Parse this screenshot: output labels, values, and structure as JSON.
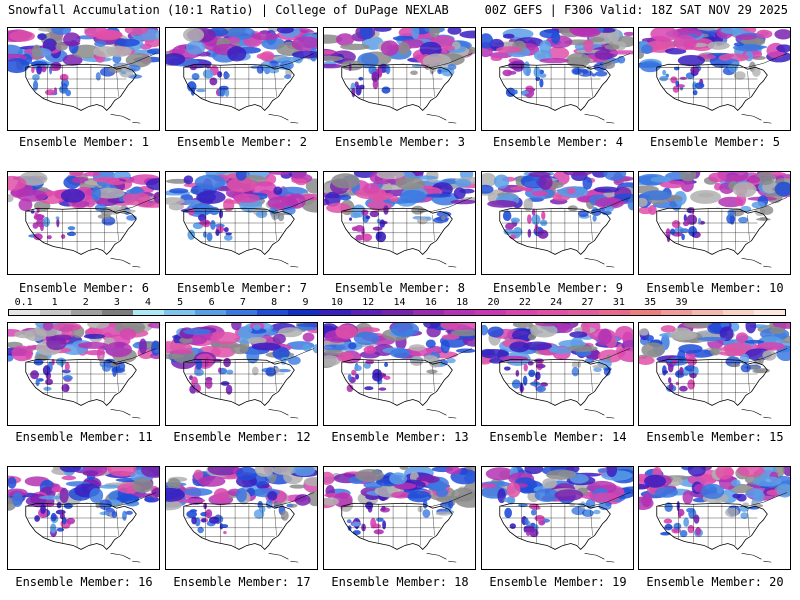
{
  "header": {
    "left": "Snowfall Accumulation (10:1 Ratio) | College of DuPage NEXLAB",
    "right": "00Z GEFS | F306 Valid: 18Z SAT NOV 29 2025"
  },
  "members": [
    {
      "label": "Ensemble Member: 1"
    },
    {
      "label": "Ensemble Member: 2"
    },
    {
      "label": "Ensemble Member: 3"
    },
    {
      "label": "Ensemble Member: 4"
    },
    {
      "label": "Ensemble Member: 5"
    },
    {
      "label": "Ensemble Member: 6"
    },
    {
      "label": "Ensemble Member: 7"
    },
    {
      "label": "Ensemble Member: 8"
    },
    {
      "label": "Ensemble Member: 9"
    },
    {
      "label": "Ensemble Member: 10"
    },
    {
      "label": "Ensemble Member: 11"
    },
    {
      "label": "Ensemble Member: 12"
    },
    {
      "label": "Ensemble Member: 13"
    },
    {
      "label": "Ensemble Member: 14"
    },
    {
      "label": "Ensemble Member: 15"
    },
    {
      "label": "Ensemble Member: 16"
    },
    {
      "label": "Ensemble Member: 17"
    },
    {
      "label": "Ensemble Member: 18"
    },
    {
      "label": "Ensemble Member: 19"
    },
    {
      "label": "Ensemble Member: 20"
    }
  ],
  "colorbar": {
    "ticks": [
      "0.1",
      "1",
      "2",
      "3",
      "4",
      "5",
      "6",
      "7",
      "8",
      "9",
      "10",
      "12",
      "14",
      "16",
      "18",
      "20",
      "22",
      "24",
      "27",
      "31",
      "35",
      "39"
    ],
    "colors": [
      "#e6e6e6",
      "#c8c8c8",
      "#a0a0a0",
      "#7d7d7d",
      "#aee8f4",
      "#7fc4ee",
      "#5a9ee6",
      "#3b78e0",
      "#1f4ed8",
      "#1030c8",
      "#3a1fc0",
      "#5a22b8",
      "#7a22b0",
      "#9a2ab0",
      "#b432b4",
      "#c838b4",
      "#d844b0",
      "#e050a8",
      "#e25ca0",
      "#e86890",
      "#ec8080",
      "#f09c9c",
      "#f4b8b0",
      "#f8d4c8",
      "#fce8dc"
    ]
  }
}
